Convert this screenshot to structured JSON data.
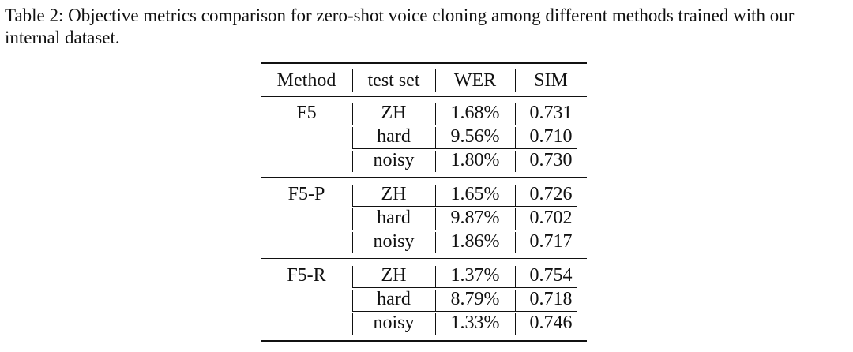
{
  "caption": "Table 2: Objective metrics comparison for zero-shot voice cloning among different methods trained with our internal dataset.",
  "table": {
    "header": [
      "Method",
      "test set",
      "WER",
      "SIM"
    ],
    "groups": [
      {
        "method": "F5",
        "rows": [
          [
            "ZH",
            "1.68%",
            "0.731"
          ],
          [
            "hard",
            "9.56%",
            "0.710"
          ],
          [
            "noisy",
            "1.80%",
            "0.730"
          ]
        ]
      },
      {
        "method": "F5-P",
        "rows": [
          [
            "ZH",
            "1.65%",
            "0.726"
          ],
          [
            "hard",
            "9.87%",
            "0.702"
          ],
          [
            "noisy",
            "1.86%",
            "0.717"
          ]
        ]
      },
      {
        "method": "F5-R",
        "rows": [
          [
            "ZH",
            "1.37%",
            "0.754"
          ],
          [
            "hard",
            "8.79%",
            "0.718"
          ],
          [
            "noisy",
            "1.33%",
            "0.746"
          ]
        ]
      }
    ]
  }
}
